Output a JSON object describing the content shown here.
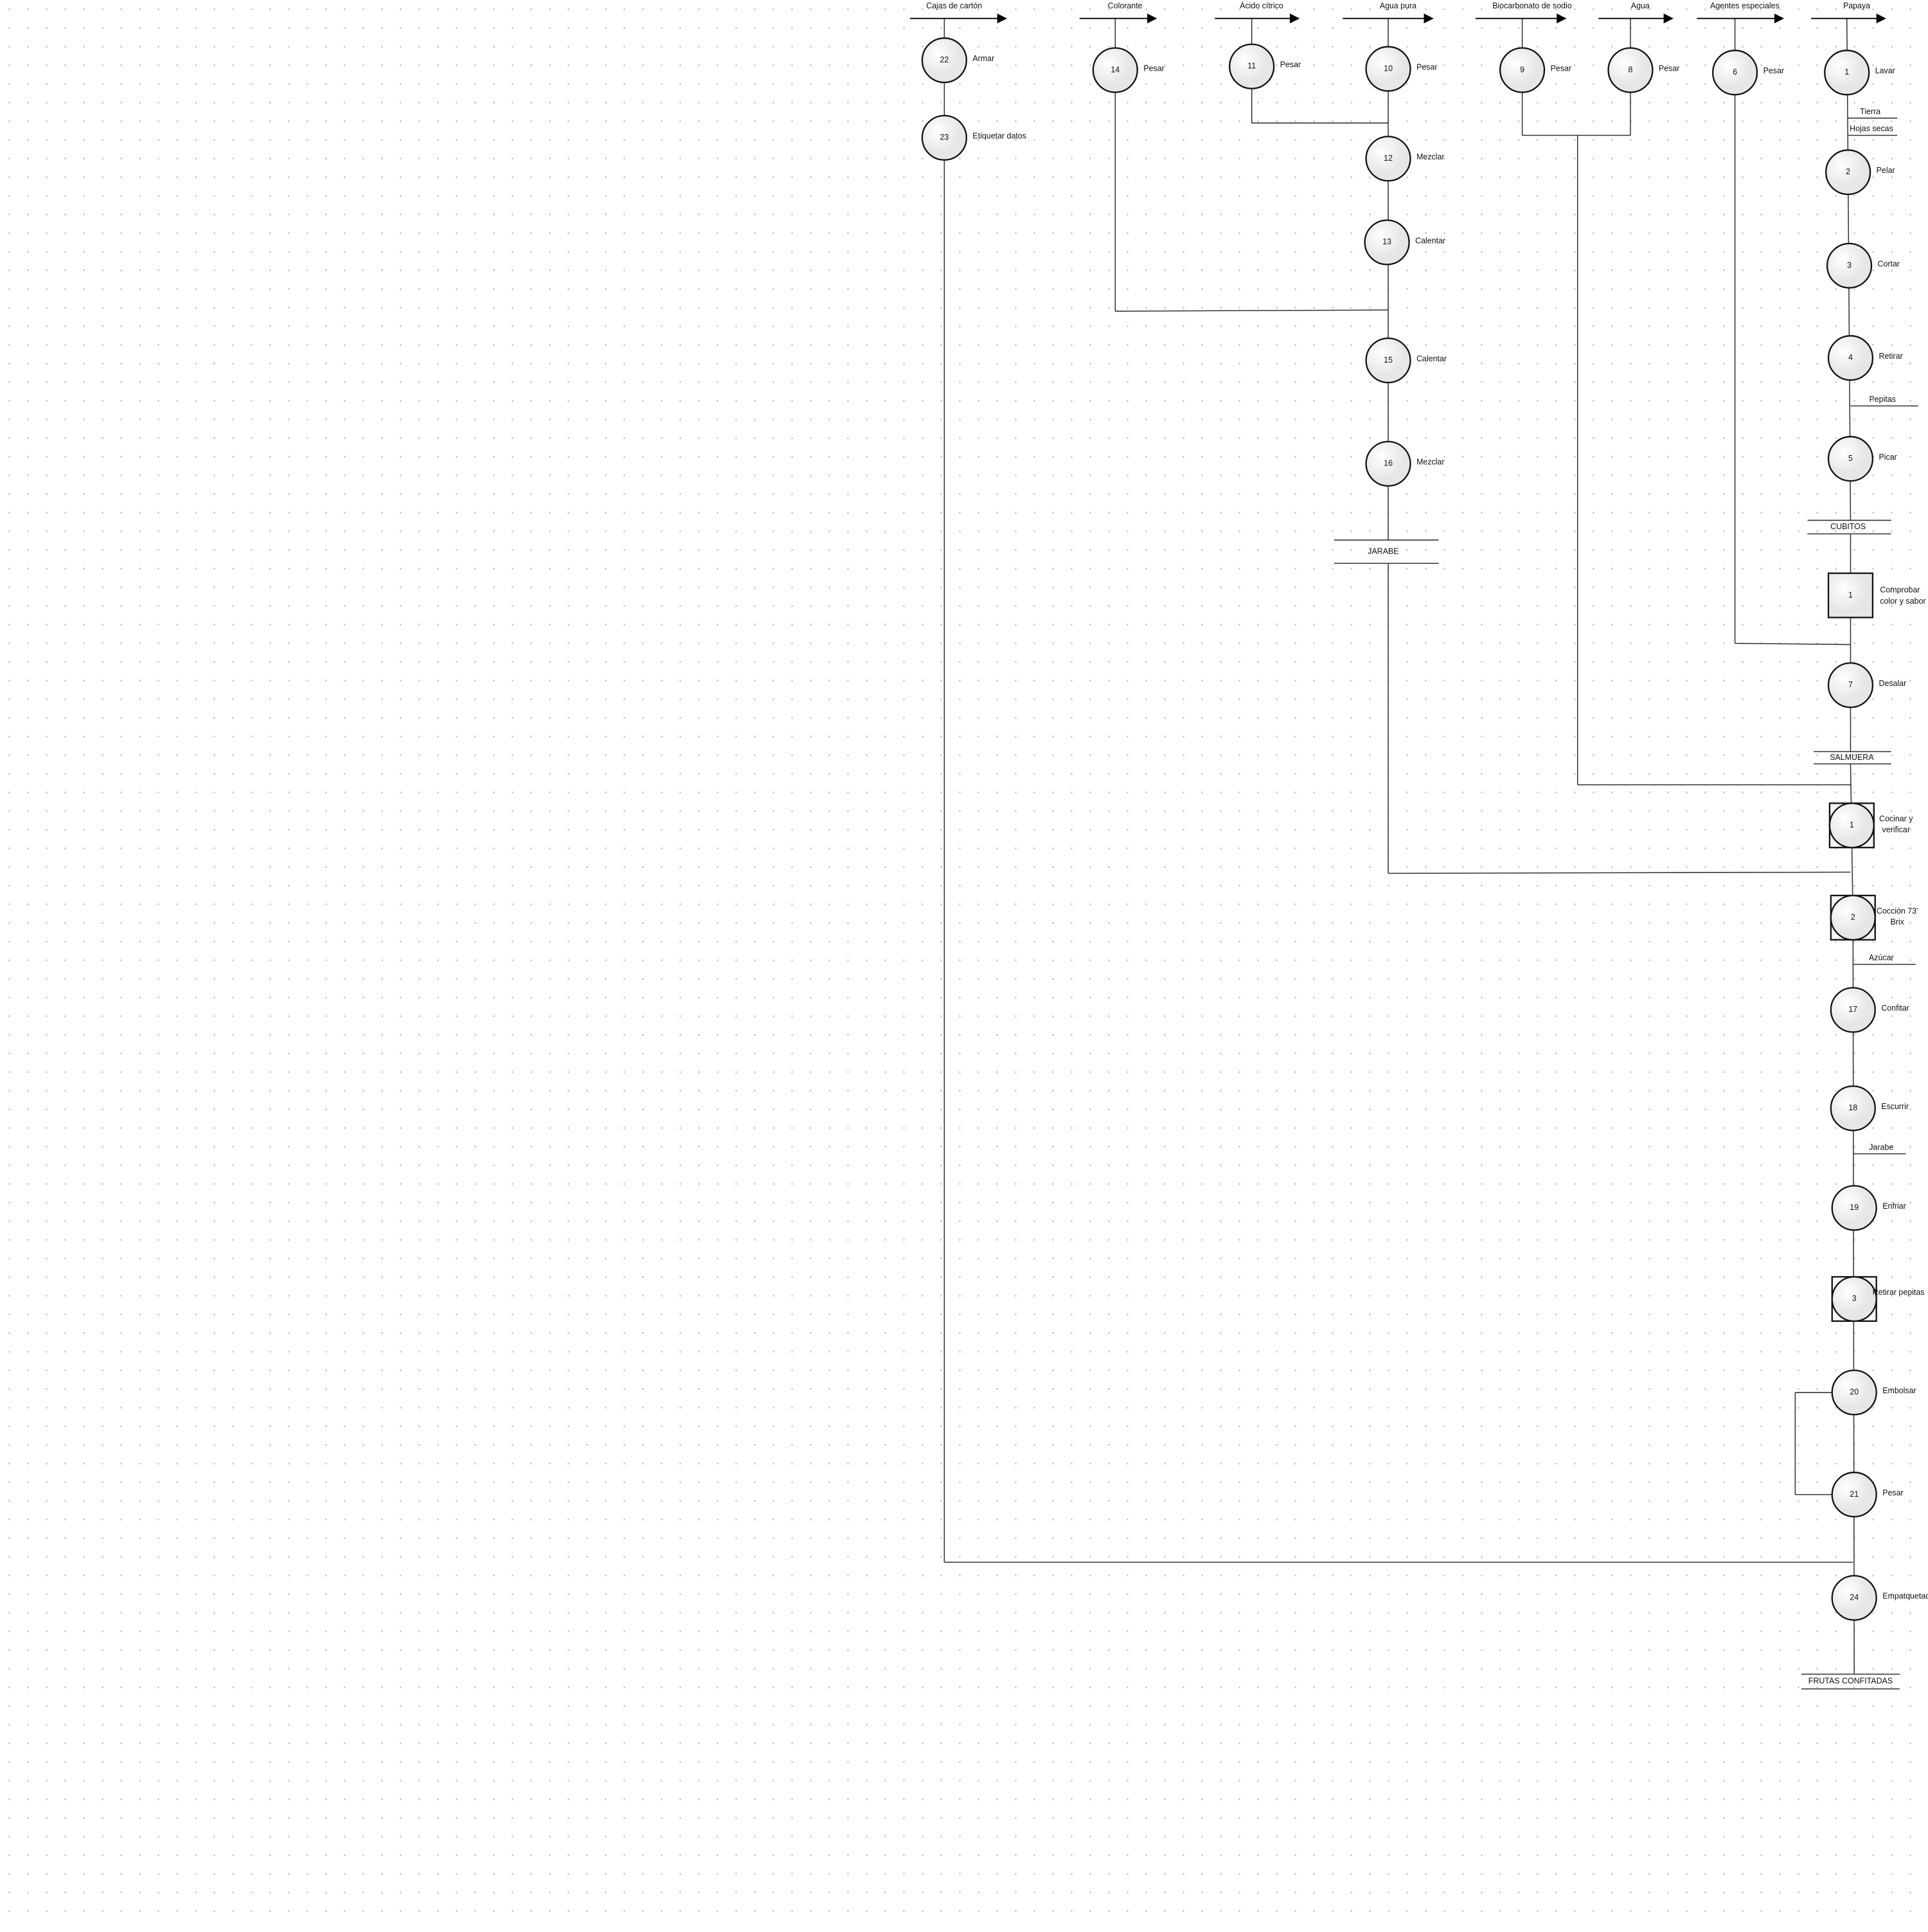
{
  "inputs": [
    "Cajas de cartón",
    "Colorante",
    "Ácido cítrico",
    "Agua pura",
    "Biocarbonato de sodio",
    "Agua",
    "Agentes especiales",
    "Papaya"
  ],
  "operations": [
    {
      "num": "22",
      "label": "Armar"
    },
    {
      "num": "23",
      "label": "Etiquetar datos"
    },
    {
      "num": "14",
      "label": "Pesar"
    },
    {
      "num": "11",
      "label": "Pesar"
    },
    {
      "num": "10",
      "label": "Pesar"
    },
    {
      "num": "12",
      "label": "Mezclar"
    },
    {
      "num": "13",
      "label": "Calentar"
    },
    {
      "num": "15",
      "label": "Calentar"
    },
    {
      "num": "16",
      "label": "Mezclar"
    },
    {
      "num": "9",
      "label": "Pesar"
    },
    {
      "num": "8",
      "label": "Pesar"
    },
    {
      "num": "6",
      "label": "Pesar"
    },
    {
      "num": "1",
      "label": "Lavar"
    },
    {
      "num": "2",
      "label": "Pelar"
    },
    {
      "num": "3",
      "label": "Cortar"
    },
    {
      "num": "4",
      "label": "Retirar"
    },
    {
      "num": "5",
      "label": "Picar"
    },
    {
      "num": "7",
      "label": "Desalar"
    },
    {
      "num": "17",
      "label": "Confitar"
    },
    {
      "num": "18",
      "label": "Escurrir"
    },
    {
      "num": "19",
      "label": "Enfriar"
    },
    {
      "num": "20",
      "label": "Embolsar"
    },
    {
      "num": "21",
      "label": "Pesar"
    },
    {
      "num": "24",
      "label": "Empatquetado"
    }
  ],
  "inspections": [
    {
      "num": "1",
      "label": [
        "Comprobar",
        "color y sabor"
      ]
    }
  ],
  "combined": [
    {
      "num": "1",
      "label": [
        "Cocinar y",
        "verificar"
      ]
    },
    {
      "num": "2",
      "label": [
        "Cocción 73'",
        "Brix"
      ]
    },
    {
      "num": "3",
      "label": [
        "Retirar pepitas"
      ]
    }
  ],
  "outputs": [
    "Tierra",
    "Hojas secas",
    "Pepitas",
    "Azúcar",
    "Jarabe"
  ],
  "intermediates": [
    "JARABE",
    "CUBITOS",
    "SALMUERA",
    "FRUTAS CONFITADAS"
  ]
}
